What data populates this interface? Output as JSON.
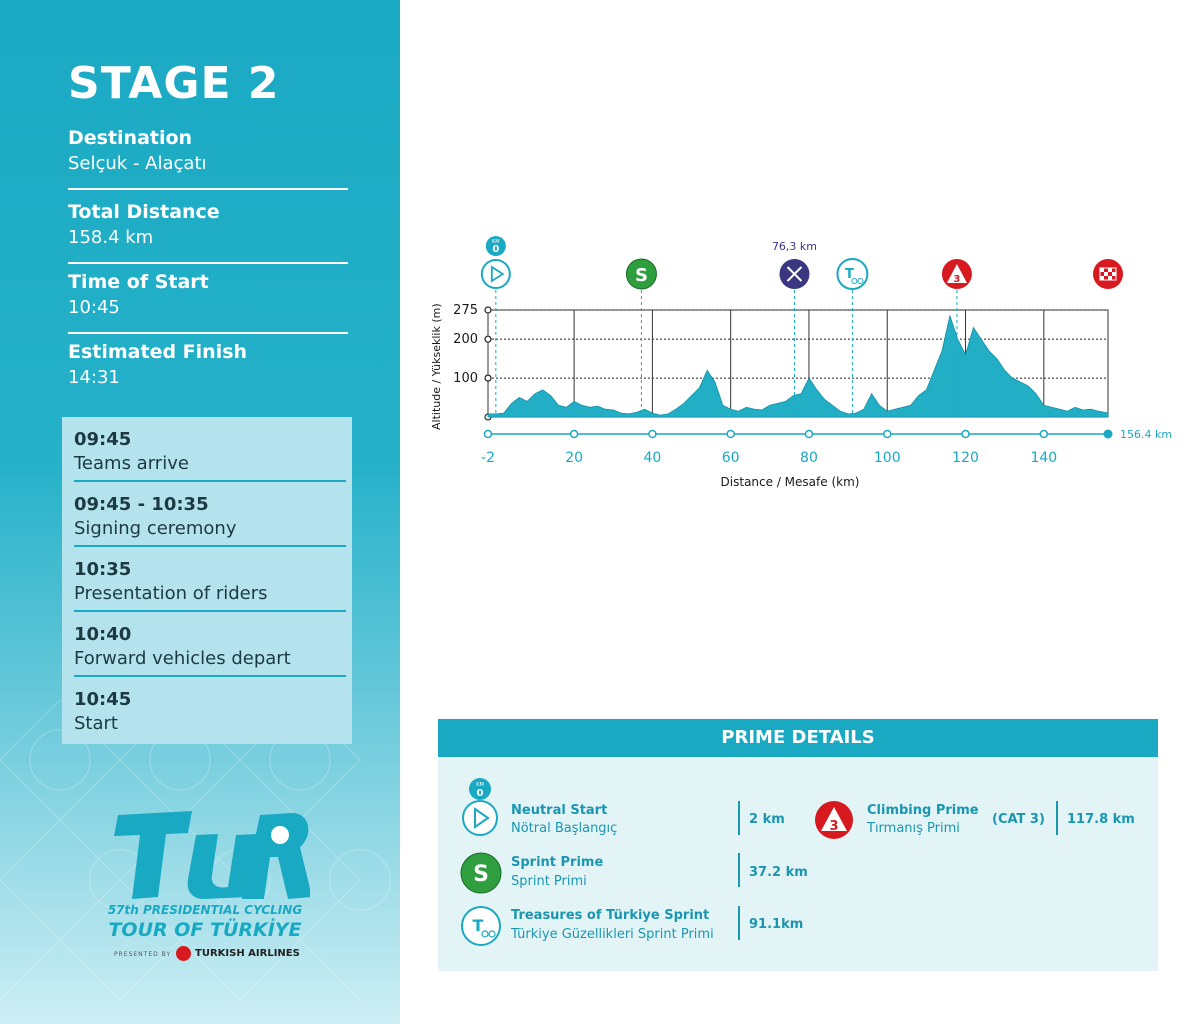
{
  "stage": {
    "title": "STAGE 2",
    "destination_label": "Destination",
    "destination": "Selçuk - Alaçatı",
    "distance_label": "Total Distance",
    "distance": "158.4 km",
    "start_label": "Time of Start",
    "start": "10:45",
    "finish_label": "Estimated Finish",
    "finish": "14:31"
  },
  "schedule": [
    {
      "time": "09:45",
      "desc": "Teams arrive"
    },
    {
      "time": "09:45 - 10:35",
      "desc": "Signing ceremony"
    },
    {
      "time": "10:35",
      "desc": "Presentation of riders"
    },
    {
      "time": "10:40",
      "desc": "Forward vehicles depart"
    },
    {
      "time": "10:45",
      "desc": "Start"
    }
  ],
  "logo": {
    "mark": "TUR",
    "line1": "57th PRESIDENTIAL CYCLING",
    "line2": "TOUR OF TÜRKİYE",
    "presented": "PRESENTED BY",
    "airline": "TURKISH AIRLINES"
  },
  "colors": {
    "accent": "#1aa9c3",
    "sprint": "#2e9e3e",
    "climb": "#d71920",
    "feed": "#3b3680",
    "profile": "#22afc6"
  },
  "chart_data": {
    "type": "area",
    "title": "",
    "xlabel": "Distance / Mesafe  (km)",
    "ylabel": "Altitude / Yükseklik (m)",
    "xlim": [
      -2,
      156.4
    ],
    "ylim": [
      0,
      275
    ],
    "x_ticks": [
      -2,
      20,
      40,
      60,
      80,
      100,
      120,
      140
    ],
    "y_ticks": [
      100,
      200,
      275
    ],
    "end_label": "156.4 km",
    "grid": true,
    "series": [
      {
        "x": [
          -2,
          0,
          2,
          4,
          6,
          8,
          10,
          12,
          14,
          16,
          18,
          20,
          22,
          24,
          26,
          28,
          30,
          32,
          34,
          36,
          38,
          40,
          42,
          44,
          46,
          48,
          50,
          52,
          54,
          56,
          58,
          60,
          62,
          64,
          66,
          68,
          70,
          72,
          74,
          76,
          78,
          80,
          82,
          84,
          86,
          88,
          90,
          92,
          94,
          96,
          98,
          100,
          102,
          104,
          106,
          108,
          110,
          112,
          114,
          116,
          118,
          120,
          122,
          124,
          126,
          128,
          130,
          132,
          134,
          136,
          138,
          140,
          142,
          144,
          146,
          148,
          150,
          152,
          154,
          156.4
        ],
        "y": [
          8,
          8,
          10,
          35,
          50,
          40,
          60,
          70,
          55,
          30,
          25,
          40,
          30,
          25,
          28,
          20,
          18,
          10,
          8,
          12,
          20,
          10,
          5,
          8,
          20,
          35,
          55,
          75,
          120,
          90,
          30,
          20,
          15,
          25,
          20,
          18,
          30,
          35,
          40,
          55,
          60,
          100,
          70,
          45,
          30,
          15,
          8,
          10,
          20,
          60,
          30,
          15,
          20,
          25,
          30,
          55,
          70,
          120,
          170,
          260,
          200,
          160,
          230,
          200,
          170,
          150,
          120,
          100,
          90,
          80,
          60,
          30,
          25,
          20,
          15,
          25,
          18,
          20,
          15,
          10
        ]
      }
    ],
    "markers": [
      {
        "km": 0,
        "icon": "neutral-start-icon",
        "top_label": "KM",
        "top_value": "0"
      },
      {
        "km": 37.2,
        "icon": "sprint-prime-icon",
        "glyph": "S"
      },
      {
        "km": 76.3,
        "icon": "feed-zone-icon",
        "label": "76,3 km"
      },
      {
        "km": 91.1,
        "icon": "treasures-sprint-icon",
        "glyph": "T"
      },
      {
        "km": 117.8,
        "icon": "climbing-prime-icon",
        "glyph": "3"
      },
      {
        "km": 156.4,
        "icon": "finish-flag-icon"
      }
    ]
  },
  "prime": {
    "header": "PRIME DETAILS",
    "items": [
      {
        "name": "Neutral Start",
        "sub": "Nötral Başlangıç",
        "km": "2 km",
        "icon": "neutral-start-icon",
        "badge": "KM",
        "badge_value": "0"
      },
      {
        "name": "Sprint Prime",
        "sub": "Sprint Primi",
        "km": "37.2 km",
        "icon": "sprint-prime-icon",
        "glyph": "S"
      },
      {
        "name": "Treasures of Türkiye Sprint",
        "sub": "Türkiye Güzellikleri Sprint Primi",
        "km": "91.1km",
        "icon": "treasures-sprint-icon",
        "glyph": "T"
      },
      {
        "name": "Climbing Prime",
        "sub": "Tırmanış Primi",
        "cat": "(CAT 3)",
        "km": "117.8 km",
        "icon": "climbing-prime-icon",
        "glyph": "3"
      }
    ]
  }
}
